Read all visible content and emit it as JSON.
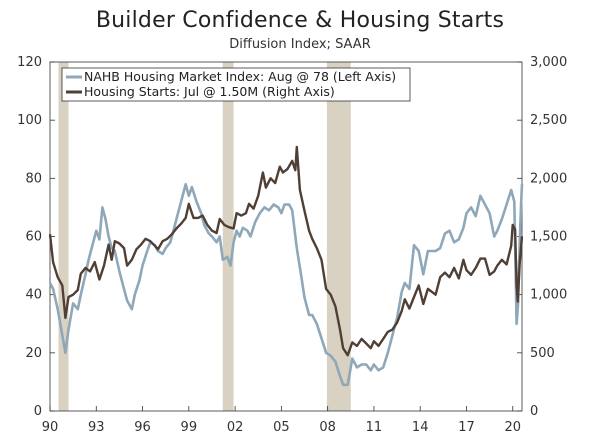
{
  "chart_data": {
    "type": "line",
    "title": "Builder Confidence & Housing Starts",
    "subtitle": "Diffusion Index; SAAR",
    "x_range": [
      1990.0,
      2020.6
    ],
    "x_ticks": [
      {
        "year": 1990,
        "label": "90"
      },
      {
        "year": 1993,
        "label": "93"
      },
      {
        "year": 1996,
        "label": "96"
      },
      {
        "year": 1999,
        "label": "99"
      },
      {
        "year": 2002,
        "label": "02"
      },
      {
        "year": 2005,
        "label": "05"
      },
      {
        "year": 2008,
        "label": "08"
      },
      {
        "year": 2011,
        "label": "11"
      },
      {
        "year": 2014,
        "label": "14"
      },
      {
        "year": 2017,
        "label": "17"
      },
      {
        "year": 2020,
        "label": "20"
      }
    ],
    "y_left": {
      "range": [
        0,
        120
      ],
      "ticks": [
        0,
        20,
        40,
        60,
        80,
        100,
        120
      ],
      "tick_labels": [
        "0",
        "20",
        "40",
        "60",
        "80",
        "100",
        "120"
      ]
    },
    "y_right": {
      "range": [
        0,
        3000
      ],
      "ticks": [
        0,
        500,
        1000,
        1500,
        2000,
        2500,
        3000
      ],
      "tick_labels": [
        "0",
        "500",
        "1,000",
        "1,500",
        "2,000",
        "2,500",
        "3,000"
      ]
    },
    "recessions": [
      [
        1990.55,
        1991.2
      ],
      [
        2001.2,
        2001.9
      ],
      [
        2007.95,
        2009.5
      ]
    ],
    "colors": {
      "nahb": "#8ea7b9",
      "starts": "#4f3f35",
      "recession": "#d9d2c3"
    },
    "series": [
      {
        "name": "NAHB Housing Market Index: Aug @ 78 (Left Axis)",
        "axis": "left",
        "points": [
          [
            1990.0,
            44
          ],
          [
            1990.2,
            42
          ],
          [
            1990.5,
            35
          ],
          [
            1990.8,
            26
          ],
          [
            1991.0,
            20
          ],
          [
            1991.2,
            28
          ],
          [
            1991.5,
            37
          ],
          [
            1991.8,
            35
          ],
          [
            1992.0,
            40
          ],
          [
            1992.3,
            47
          ],
          [
            1992.5,
            52
          ],
          [
            1992.8,
            58
          ],
          [
            1993.0,
            62
          ],
          [
            1993.2,
            59
          ],
          [
            1993.4,
            70
          ],
          [
            1993.6,
            66
          ],
          [
            1993.8,
            60
          ],
          [
            1994.0,
            56
          ],
          [
            1994.2,
            55
          ],
          [
            1994.5,
            48
          ],
          [
            1994.8,
            42
          ],
          [
            1995.0,
            38
          ],
          [
            1995.3,
            35
          ],
          [
            1995.5,
            40
          ],
          [
            1995.8,
            45
          ],
          [
            1996.0,
            50
          ],
          [
            1996.3,
            55
          ],
          [
            1996.5,
            58
          ],
          [
            1996.8,
            57
          ],
          [
            1997.0,
            55
          ],
          [
            1997.3,
            54
          ],
          [
            1997.5,
            56
          ],
          [
            1997.8,
            58
          ],
          [
            1998.0,
            62
          ],
          [
            1998.3,
            68
          ],
          [
            1998.5,
            72
          ],
          [
            1998.8,
            78
          ],
          [
            1999.0,
            74
          ],
          [
            1999.2,
            77
          ],
          [
            1999.5,
            72
          ],
          [
            1999.8,
            68
          ],
          [
            2000.0,
            64
          ],
          [
            2000.3,
            61
          ],
          [
            2000.5,
            60
          ],
          [
            2000.8,
            58
          ],
          [
            2001.0,
            60
          ],
          [
            2001.2,
            52
          ],
          [
            2001.5,
            53
          ],
          [
            2001.7,
            50
          ],
          [
            2001.9,
            58
          ],
          [
            2002.1,
            62
          ],
          [
            2002.3,
            60
          ],
          [
            2002.5,
            63
          ],
          [
            2002.8,
            62
          ],
          [
            2003.0,
            60
          ],
          [
            2003.3,
            65
          ],
          [
            2003.6,
            68
          ],
          [
            2003.9,
            70
          ],
          [
            2004.2,
            69
          ],
          [
            2004.5,
            71
          ],
          [
            2004.8,
            70
          ],
          [
            2005.0,
            68
          ],
          [
            2005.2,
            71
          ],
          [
            2005.5,
            71
          ],
          [
            2005.7,
            69
          ],
          [
            2006.0,
            56
          ],
          [
            2006.3,
            46
          ],
          [
            2006.5,
            39
          ],
          [
            2006.8,
            33
          ],
          [
            2007.0,
            33
          ],
          [
            2007.3,
            30
          ],
          [
            2007.6,
            25
          ],
          [
            2007.9,
            20
          ],
          [
            2008.2,
            19
          ],
          [
            2008.5,
            17
          ],
          [
            2008.8,
            12
          ],
          [
            2009.0,
            9
          ],
          [
            2009.3,
            9
          ],
          [
            2009.6,
            18
          ],
          [
            2009.9,
            15
          ],
          [
            2010.2,
            16
          ],
          [
            2010.5,
            16
          ],
          [
            2010.8,
            14
          ],
          [
            2011.0,
            16
          ],
          [
            2011.3,
            14
          ],
          [
            2011.6,
            15
          ],
          [
            2011.9,
            20
          ],
          [
            2012.2,
            26
          ],
          [
            2012.5,
            32
          ],
          [
            2012.8,
            41
          ],
          [
            2013.0,
            44
          ],
          [
            2013.3,
            42
          ],
          [
            2013.6,
            57
          ],
          [
            2013.9,
            55
          ],
          [
            2014.2,
            47
          ],
          [
            2014.5,
            55
          ],
          [
            2014.8,
            55
          ],
          [
            2015.0,
            55
          ],
          [
            2015.3,
            56
          ],
          [
            2015.6,
            61
          ],
          [
            2015.9,
            62
          ],
          [
            2016.2,
            58
          ],
          [
            2016.5,
            59
          ],
          [
            2016.8,
            63
          ],
          [
            2017.0,
            68
          ],
          [
            2017.3,
            70
          ],
          [
            2017.6,
            67
          ],
          [
            2017.9,
            74
          ],
          [
            2018.2,
            71
          ],
          [
            2018.5,
            68
          ],
          [
            2018.8,
            60
          ],
          [
            2019.0,
            62
          ],
          [
            2019.3,
            66
          ],
          [
            2019.6,
            71
          ],
          [
            2019.9,
            76
          ],
          [
            2020.1,
            72
          ],
          [
            2020.25,
            30
          ],
          [
            2020.35,
            37
          ],
          [
            2020.45,
            58
          ],
          [
            2020.55,
            72
          ],
          [
            2020.6,
            78
          ]
        ]
      },
      {
        "name": "Housing Starts: Jul @ 1.50M (Right Axis)",
        "axis": "right",
        "points": [
          [
            1990.0,
            1520
          ],
          [
            1990.2,
            1280
          ],
          [
            1990.5,
            1150
          ],
          [
            1990.8,
            1080
          ],
          [
            1991.0,
            800
          ],
          [
            1991.2,
            980
          ],
          [
            1991.5,
            1000
          ],
          [
            1991.8,
            1040
          ],
          [
            1992.0,
            1180
          ],
          [
            1992.3,
            1230
          ],
          [
            1992.6,
            1200
          ],
          [
            1992.9,
            1280
          ],
          [
            1993.2,
            1130
          ],
          [
            1993.5,
            1250
          ],
          [
            1993.8,
            1430
          ],
          [
            1994.0,
            1300
          ],
          [
            1994.2,
            1460
          ],
          [
            1994.5,
            1440
          ],
          [
            1994.8,
            1400
          ],
          [
            1995.0,
            1250
          ],
          [
            1995.3,
            1300
          ],
          [
            1995.6,
            1390
          ],
          [
            1995.9,
            1430
          ],
          [
            1996.2,
            1480
          ],
          [
            1996.5,
            1460
          ],
          [
            1996.8,
            1420
          ],
          [
            1997.0,
            1390
          ],
          [
            1997.3,
            1460
          ],
          [
            1997.6,
            1480
          ],
          [
            1997.9,
            1520
          ],
          [
            1998.2,
            1570
          ],
          [
            1998.5,
            1610
          ],
          [
            1998.8,
            1660
          ],
          [
            1999.0,
            1780
          ],
          [
            1999.3,
            1660
          ],
          [
            1999.6,
            1660
          ],
          [
            1999.9,
            1680
          ],
          [
            2000.2,
            1600
          ],
          [
            2000.5,
            1550
          ],
          [
            2000.8,
            1530
          ],
          [
            2001.0,
            1650
          ],
          [
            2001.3,
            1600
          ],
          [
            2001.6,
            1580
          ],
          [
            2001.9,
            1570
          ],
          [
            2002.1,
            1700
          ],
          [
            2002.4,
            1680
          ],
          [
            2002.7,
            1700
          ],
          [
            2002.9,
            1780
          ],
          [
            2003.2,
            1740
          ],
          [
            2003.5,
            1850
          ],
          [
            2003.8,
            2050
          ],
          [
            2004.0,
            1920
          ],
          [
            2004.3,
            2000
          ],
          [
            2004.6,
            1960
          ],
          [
            2004.9,
            2100
          ],
          [
            2005.1,
            2050
          ],
          [
            2005.4,
            2080
          ],
          [
            2005.7,
            2150
          ],
          [
            2005.9,
            2070
          ],
          [
            2006.0,
            2270
          ],
          [
            2006.2,
            1900
          ],
          [
            2006.5,
            1720
          ],
          [
            2006.8,
            1550
          ],
          [
            2007.0,
            1480
          ],
          [
            2007.3,
            1400
          ],
          [
            2007.6,
            1300
          ],
          [
            2007.9,
            1050
          ],
          [
            2008.2,
            1000
          ],
          [
            2008.5,
            900
          ],
          [
            2008.8,
            700
          ],
          [
            2009.0,
            540
          ],
          [
            2009.3,
            480
          ],
          [
            2009.6,
            590
          ],
          [
            2009.9,
            560
          ],
          [
            2010.2,
            620
          ],
          [
            2010.5,
            580
          ],
          [
            2010.8,
            540
          ],
          [
            2011.0,
            600
          ],
          [
            2011.3,
            560
          ],
          [
            2011.6,
            620
          ],
          [
            2011.9,
            680
          ],
          [
            2012.2,
            700
          ],
          [
            2012.5,
            760
          ],
          [
            2012.8,
            860
          ],
          [
            2013.0,
            960
          ],
          [
            2013.3,
            880
          ],
          [
            2013.6,
            980
          ],
          [
            2013.9,
            1080
          ],
          [
            2014.2,
            920
          ],
          [
            2014.5,
            1050
          ],
          [
            2014.8,
            1020
          ],
          [
            2015.0,
            1000
          ],
          [
            2015.3,
            1150
          ],
          [
            2015.6,
            1190
          ],
          [
            2015.9,
            1150
          ],
          [
            2016.2,
            1230
          ],
          [
            2016.5,
            1140
          ],
          [
            2016.8,
            1300
          ],
          [
            2017.0,
            1210
          ],
          [
            2017.3,
            1170
          ],
          [
            2017.6,
            1230
          ],
          [
            2017.9,
            1310
          ],
          [
            2018.2,
            1310
          ],
          [
            2018.5,
            1170
          ],
          [
            2018.8,
            1200
          ],
          [
            2019.0,
            1250
          ],
          [
            2019.3,
            1300
          ],
          [
            2019.6,
            1260
          ],
          [
            2019.9,
            1420
          ],
          [
            2020.0,
            1600
          ],
          [
            2020.15,
            1560
          ],
          [
            2020.25,
            1080
          ],
          [
            2020.33,
            940
          ],
          [
            2020.45,
            1270
          ],
          [
            2020.6,
            1500
          ]
        ]
      }
    ]
  }
}
